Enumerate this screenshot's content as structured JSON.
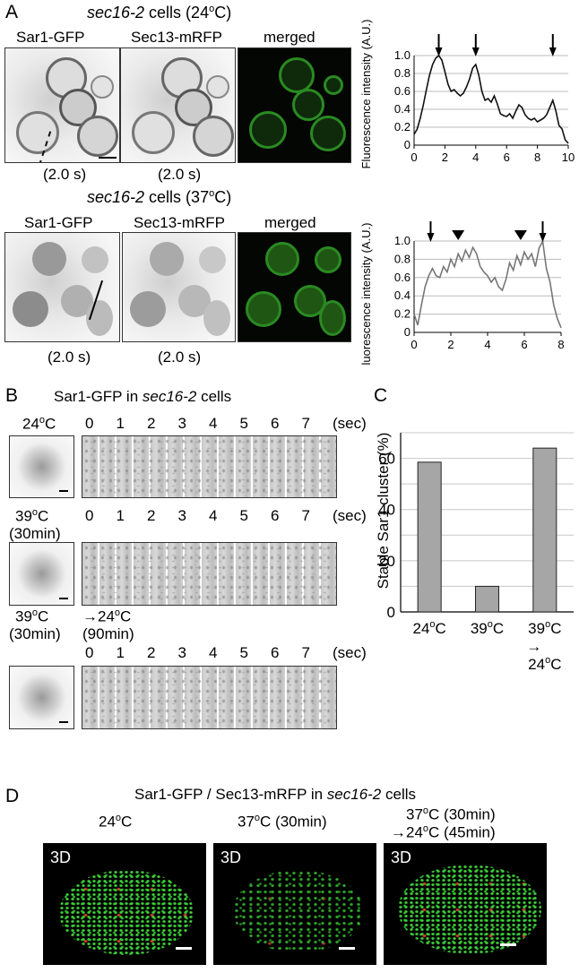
{
  "panel_a": {
    "letter": "A",
    "top_header": {
      "italic": "sec16-2",
      "rest": " cells (24",
      "sup": "o",
      "end": "C)"
    },
    "bottom_header": {
      "italic": "sec16-2",
      "rest": " cells (37",
      "sup": "o",
      "end": "C)"
    },
    "labels": {
      "sar1": "Sar1-GFP",
      "sec13": "Sec13-mRFP",
      "merged": "merged"
    },
    "exposure": "(2.0 s)"
  },
  "panel_b": {
    "letter": "B",
    "header": {
      "pre": "Sar1-GFP in ",
      "italic": "sec16-2",
      "post": " cells"
    },
    "rows": [
      {
        "cond": "24",
        "sup": "o",
        "unit": "C"
      },
      {
        "cond": "39",
        "sup": "o",
        "unit": "C",
        "sub": "(30min)"
      },
      {
        "cond": "39",
        "sup": "o",
        "unit": "C",
        "sub": "(30min)",
        "extra": "→24",
        "extra_sup": "o",
        "extra_unit": "C",
        "extra_sub": "(90min)"
      }
    ],
    "time_ticks": [
      "0",
      "1",
      "2",
      "3",
      "4",
      "5",
      "6",
      "7",
      "(sec)"
    ]
  },
  "panel_c": {
    "letter": "C"
  },
  "panel_d": {
    "letter": "D",
    "header": {
      "pre": "Sar1-GFP / Sec13-mRFP in ",
      "italic": "sec16-2",
      "post": " cells"
    },
    "col1": {
      "a": "24",
      "sup": "o",
      "b": "C"
    },
    "col2": {
      "a": "37",
      "sup": "o",
      "b": "C (30min)"
    },
    "col3_line1": {
      "a": "37",
      "sup": "o",
      "b": "C (30min)"
    },
    "col3_line2": {
      "a": "→24",
      "sup": "o",
      "b": "C (45min)"
    },
    "tag": "3D"
  },
  "chart_data": [
    {
      "type": "line",
      "ylabel": "Fluorescence intensity (A.U.)",
      "xlim": [
        0,
        10
      ],
      "ylim": [
        0,
        1.0
      ],
      "xticks": [
        "0",
        "2",
        "4",
        "6",
        "8",
        "10"
      ],
      "yticks": [
        "0",
        "0.2",
        "0.4",
        "0.6",
        "0.8",
        "1.0"
      ],
      "grid": "horizontal",
      "color": "#111111",
      "markers": [
        {
          "kind": "arrow",
          "x": 1.6
        },
        {
          "kind": "arrow",
          "x": 4.0
        },
        {
          "kind": "arrow",
          "x": 9.0
        }
      ],
      "x": [
        0,
        0.2,
        0.4,
        0.6,
        0.8,
        1.0,
        1.2,
        1.4,
        1.6,
        1.8,
        2.0,
        2.2,
        2.4,
        2.6,
        2.8,
        3.0,
        3.2,
        3.4,
        3.6,
        3.8,
        4.0,
        4.2,
        4.4,
        4.6,
        4.8,
        5.0,
        5.2,
        5.4,
        5.6,
        5.8,
        6.0,
        6.2,
        6.4,
        6.6,
        6.8,
        7.0,
        7.2,
        7.4,
        7.6,
        7.8,
        8.0,
        8.2,
        8.4,
        8.6,
        8.8,
        9.0,
        9.2,
        9.4,
        9.6,
        9.8,
        10.0
      ],
      "y": [
        0.12,
        0.18,
        0.3,
        0.45,
        0.62,
        0.78,
        0.9,
        0.97,
        1.0,
        0.95,
        0.82,
        0.68,
        0.6,
        0.62,
        0.58,
        0.55,
        0.58,
        0.65,
        0.74,
        0.86,
        0.9,
        0.78,
        0.6,
        0.5,
        0.52,
        0.48,
        0.55,
        0.46,
        0.35,
        0.33,
        0.32,
        0.35,
        0.3,
        0.38,
        0.45,
        0.42,
        0.34,
        0.3,
        0.28,
        0.3,
        0.26,
        0.28,
        0.3,
        0.34,
        0.42,
        0.5,
        0.38,
        0.22,
        0.18,
        0.06,
        0.02
      ]
    },
    {
      "type": "line",
      "ylabel": "Fluorescence intensity (A.U.)",
      "xlim": [
        0,
        8
      ],
      "ylim": [
        0,
        1.0
      ],
      "xticks": [
        "0",
        "2",
        "4",
        "6",
        "8"
      ],
      "yticks": [
        "0",
        "0.2",
        "0.4",
        "0.6",
        "0.8",
        "1.0"
      ],
      "grid": "horizontal",
      "color": "#777777",
      "markers": [
        {
          "kind": "arrow",
          "x": 0.9
        },
        {
          "kind": "triangle",
          "x": 2.4
        },
        {
          "kind": "triangle",
          "x": 5.8
        },
        {
          "kind": "arrow",
          "x": 7.0
        }
      ],
      "x": [
        0,
        0.2,
        0.4,
        0.6,
        0.8,
        1.0,
        1.2,
        1.4,
        1.6,
        1.8,
        2.0,
        2.2,
        2.4,
        2.6,
        2.8,
        3.0,
        3.2,
        3.4,
        3.6,
        3.8,
        4.0,
        4.2,
        4.4,
        4.6,
        4.8,
        5.0,
        5.2,
        5.4,
        5.6,
        5.8,
        6.0,
        6.2,
        6.4,
        6.6,
        6.8,
        7.0,
        7.2,
        7.4,
        7.6,
        7.8,
        8.0
      ],
      "y": [
        0.2,
        0.08,
        0.3,
        0.5,
        0.62,
        0.7,
        0.62,
        0.6,
        0.72,
        0.66,
        0.8,
        0.72,
        0.86,
        0.78,
        0.9,
        0.82,
        0.93,
        0.86,
        0.72,
        0.66,
        0.62,
        0.55,
        0.6,
        0.5,
        0.46,
        0.58,
        0.76,
        0.68,
        0.84,
        0.74,
        0.88,
        0.8,
        0.86,
        0.72,
        0.92,
        1.0,
        0.7,
        0.55,
        0.3,
        0.15,
        0.05
      ]
    },
    {
      "type": "bar",
      "ylabel": "Stable Sar1 cluster (%)",
      "categories": [
        "24°C",
        "39°C",
        "39°C → 24°C"
      ],
      "category_labels": [
        {
          "a": "24",
          "sup": "o",
          "b": "C"
        },
        {
          "a": "39",
          "sup": "o",
          "b": "C"
        },
        {
          "a": "39",
          "sup": "o",
          "b": "C",
          "line2": "→",
          "line3a": "24",
          "line3sup": "o",
          "line3b": "C"
        }
      ],
      "values": [
        58.5,
        10,
        64
      ],
      "ylim": [
        0,
        70
      ],
      "yticks": [
        "0",
        "20",
        "40",
        "60"
      ],
      "grid": "horizontal",
      "bar_color": "#a6a6a6"
    }
  ]
}
